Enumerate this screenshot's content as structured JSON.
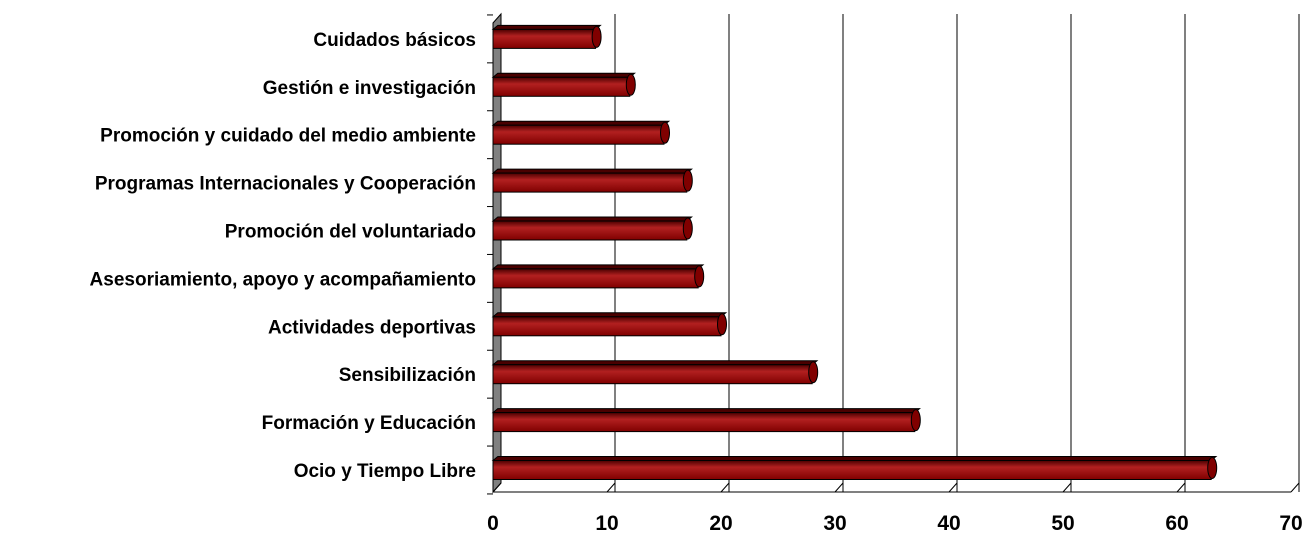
{
  "chart_data": {
    "type": "bar",
    "orientation": "horizontal",
    "title": "",
    "xlabel": "",
    "ylabel": "",
    "categories": [
      "Ocio y Tiempo Libre",
      "Formación y Educación",
      "Sensibilización",
      "Actividades deportivas",
      "Asesoriamiento, apoyo y acompañamiento",
      "Promoción del voluntariado",
      "Programas Internacionales y Cooperación",
      "Promoción y cuidado del medio ambiente",
      "Gestión e investigación",
      "Cuidados básicos"
    ],
    "values": [
      63,
      37,
      28,
      20,
      18,
      17,
      17,
      15,
      12,
      9
    ],
    "xlim": [
      0,
      70
    ],
    "x_ticks": [
      0,
      10,
      20,
      30,
      40,
      50,
      60,
      70
    ],
    "x_tick_labels": [
      "0",
      "10",
      "20",
      "30",
      "40",
      "50",
      "60",
      "70"
    ],
    "grid": "vertical",
    "legend": "none",
    "colors": {
      "bar_fill": "#800000",
      "bar_highlight": "#b22020",
      "bar_shadow": "#4a0000",
      "bar_outline": "#000000",
      "wall": "#808080",
      "grid": "#000000"
    }
  }
}
